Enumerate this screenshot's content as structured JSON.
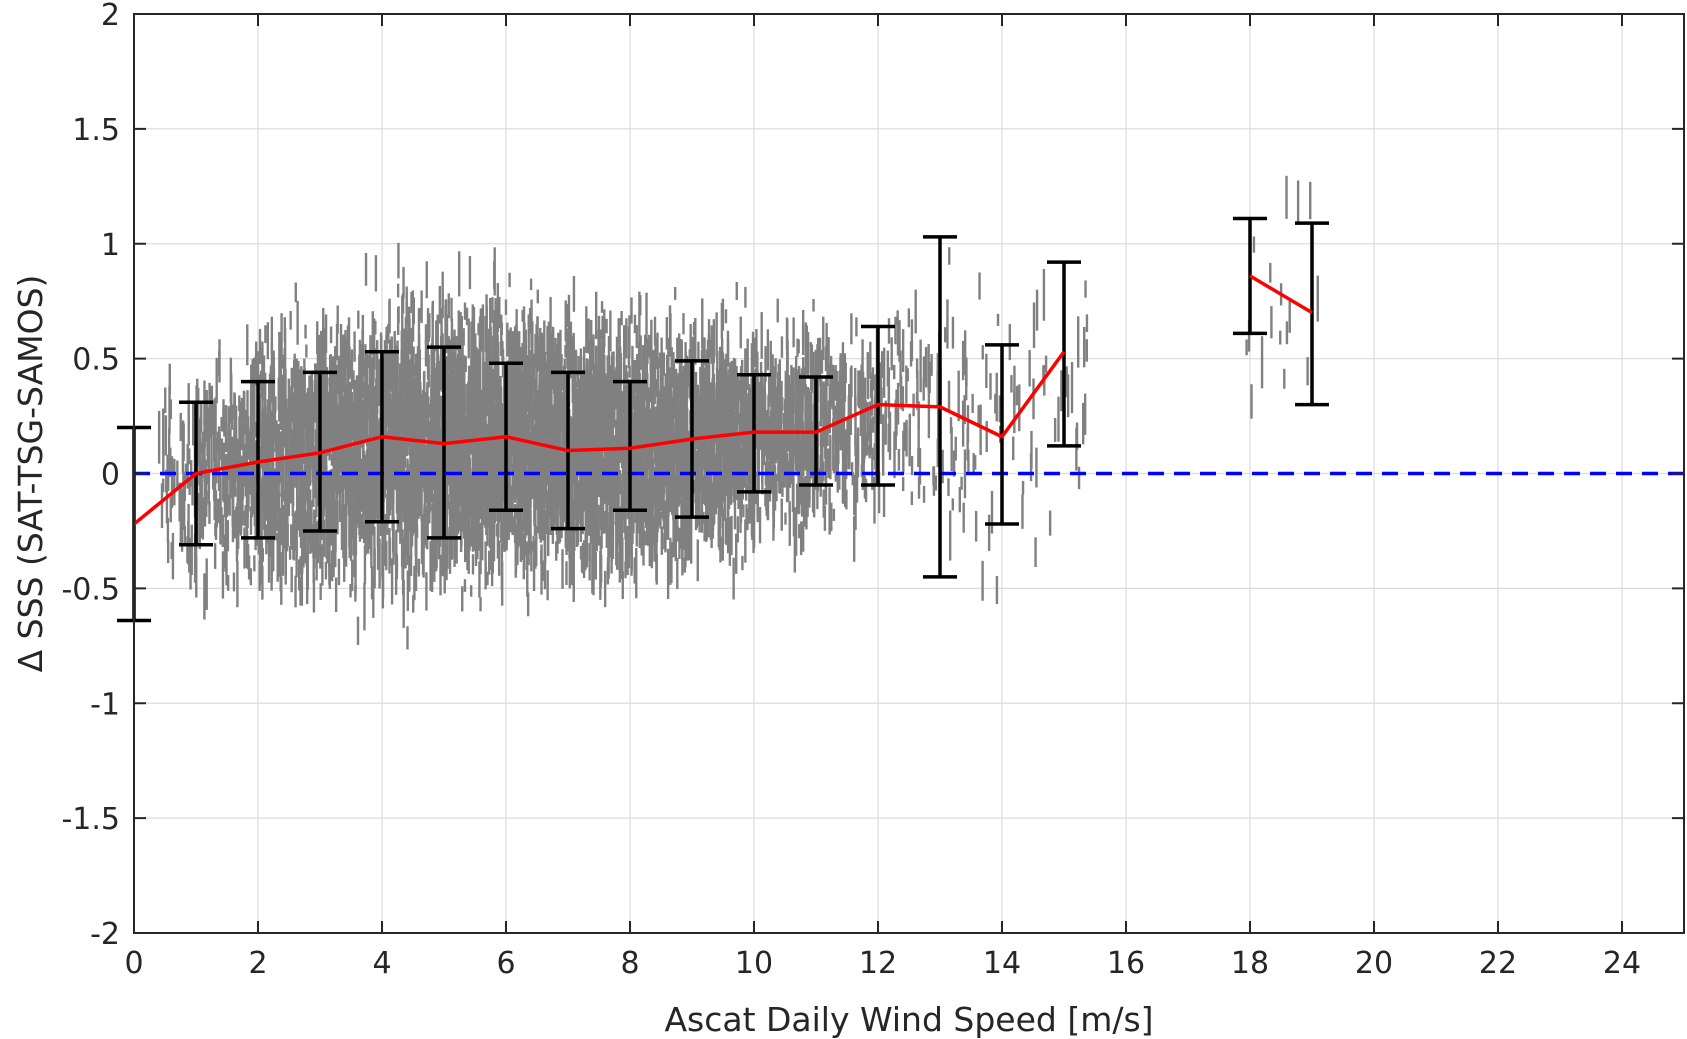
{
  "chart_data": {
    "type": "scatter",
    "title": "",
    "xlabel": "Ascat Daily Wind Speed [m/s]",
    "ylabel": "Δ SSS (SAT-TSG-SAMOS)",
    "xlim": [
      0,
      25
    ],
    "ylim": [
      -2,
      2
    ],
    "xticks": [
      0,
      2,
      4,
      6,
      8,
      10,
      12,
      14,
      16,
      18,
      20,
      22,
      24
    ],
    "xtick_labels": [
      "0",
      "2",
      "4",
      "6",
      "8",
      "10",
      "12",
      "14",
      "16",
      "18",
      "20",
      "22",
      "24"
    ],
    "yticks": [
      -2,
      -1.5,
      -1,
      -0.5,
      0,
      0.5,
      1,
      1.5,
      2
    ],
    "ytick_labels": [
      "-2",
      "-1.5",
      "-1",
      "-0.5",
      "0",
      "0.5",
      "1",
      "1.5",
      "2"
    ],
    "grid": true,
    "reference_line": {
      "y": 0,
      "color": "#0000ff",
      "style": "dashed"
    },
    "scatter_color": "#808080",
    "mean_line_color": "#ff0000",
    "errorbar_color": "#000000",
    "mean_segments": [
      [
        {
          "x": 0,
          "y": -0.22
        },
        {
          "x": 1,
          "y": 0.0
        },
        {
          "x": 2,
          "y": 0.05
        },
        {
          "x": 3,
          "y": 0.09
        },
        {
          "x": 4,
          "y": 0.16
        },
        {
          "x": 5,
          "y": 0.13
        },
        {
          "x": 6,
          "y": 0.16
        },
        {
          "x": 7,
          "y": 0.1
        },
        {
          "x": 8,
          "y": 0.11
        },
        {
          "x": 9,
          "y": 0.15
        },
        {
          "x": 10,
          "y": 0.18
        },
        {
          "x": 11,
          "y": 0.18
        },
        {
          "x": 12,
          "y": 0.3
        },
        {
          "x": 13,
          "y": 0.29
        },
        {
          "x": 14,
          "y": 0.16
        },
        {
          "x": 15,
          "y": 0.53
        }
      ],
      [
        {
          "x": 18,
          "y": 0.86
        },
        {
          "x": 19,
          "y": 0.7
        }
      ]
    ],
    "errorbars": [
      {
        "x": 0,
        "low": -0.64,
        "high": 0.2
      },
      {
        "x": 1,
        "low": -0.31,
        "high": 0.31
      },
      {
        "x": 2,
        "low": -0.28,
        "high": 0.4
      },
      {
        "x": 3,
        "low": -0.25,
        "high": 0.44
      },
      {
        "x": 4,
        "low": -0.21,
        "high": 0.53
      },
      {
        "x": 5,
        "low": -0.28,
        "high": 0.55
      },
      {
        "x": 6,
        "low": -0.16,
        "high": 0.48
      },
      {
        "x": 7,
        "low": -0.24,
        "high": 0.44
      },
      {
        "x": 8,
        "low": -0.16,
        "high": 0.4
      },
      {
        "x": 9,
        "low": -0.19,
        "high": 0.49
      },
      {
        "x": 10,
        "low": -0.08,
        "high": 0.43
      },
      {
        "x": 11,
        "low": -0.05,
        "high": 0.42
      },
      {
        "x": 12,
        "low": -0.05,
        "high": 0.64
      },
      {
        "x": 13,
        "low": -0.45,
        "high": 1.03
      },
      {
        "x": 14,
        "low": -0.22,
        "high": 0.56
      },
      {
        "x": 15,
        "low": 0.12,
        "high": 0.92
      },
      {
        "x": 18,
        "low": 0.61,
        "high": 1.11
      },
      {
        "x": 19,
        "low": 0.3,
        "high": 1.09
      }
    ],
    "scatter_bins": [
      {
        "x0": 0.4,
        "x1": 1.0,
        "center": -0.05,
        "spread": 0.25,
        "count": 60
      },
      {
        "x0": 1.0,
        "x1": 2.0,
        "center": 0.02,
        "spread": 0.3,
        "count": 260
      },
      {
        "x0": 2.0,
        "x1": 3.0,
        "center": 0.05,
        "spread": 0.34,
        "count": 450
      },
      {
        "x0": 3.0,
        "x1": 4.0,
        "center": 0.1,
        "spread": 0.35,
        "count": 600
      },
      {
        "x0": 4.0,
        "x1": 5.0,
        "center": 0.15,
        "spread": 0.37,
        "count": 700
      },
      {
        "x0": 5.0,
        "x1": 6.0,
        "center": 0.14,
        "spread": 0.37,
        "count": 750
      },
      {
        "x0": 6.0,
        "x1": 7.0,
        "center": 0.13,
        "spread": 0.33,
        "count": 750
      },
      {
        "x0": 7.0,
        "x1": 8.0,
        "center": 0.11,
        "spread": 0.33,
        "count": 700
      },
      {
        "x0": 8.0,
        "x1": 9.0,
        "center": 0.13,
        "spread": 0.32,
        "count": 600
      },
      {
        "x0": 9.0,
        "x1": 10.0,
        "center": 0.16,
        "spread": 0.3,
        "count": 500
      },
      {
        "x0": 10.0,
        "x1": 11.0,
        "center": 0.18,
        "spread": 0.26,
        "count": 350
      },
      {
        "x0": 11.0,
        "x1": 12.0,
        "center": 0.22,
        "spread": 0.25,
        "count": 200
      },
      {
        "x0": 12.0,
        "x1": 13.0,
        "center": 0.28,
        "spread": 0.32,
        "count": 80
      },
      {
        "x0": 13.0,
        "x1": 14.0,
        "center": 0.2,
        "spread": 0.4,
        "count": 50
      },
      {
        "x0": 14.0,
        "x1": 15.4,
        "center": 0.3,
        "spread": 0.35,
        "count": 40
      },
      {
        "x0": 17.9,
        "x1": 19.2,
        "center": 0.8,
        "spread": 0.35,
        "count": 18
      }
    ]
  }
}
